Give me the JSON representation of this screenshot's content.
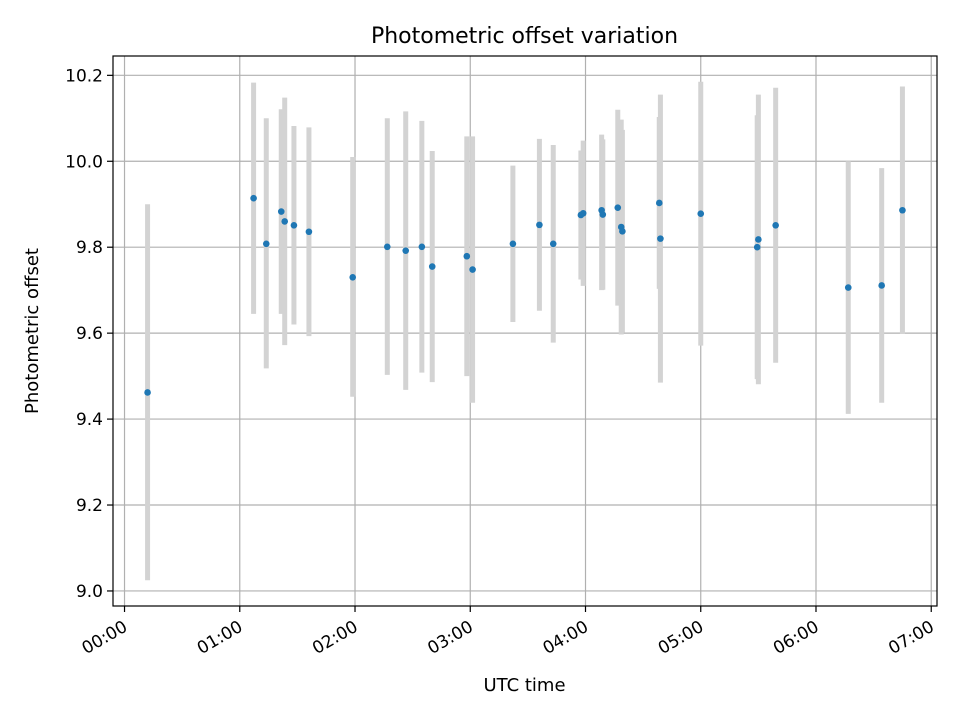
{
  "chart_data": {
    "type": "scatter",
    "title": "Photometric offset variation",
    "xlabel": "UTC time",
    "ylabel": "Photometric offset",
    "x_unit": "hours (UTC)",
    "xlim": [
      -0.1,
      7.05
    ],
    "ylim": [
      8.965,
      10.245
    ],
    "x_ticks": [
      {
        "value": 0,
        "label": "00:00"
      },
      {
        "value": 1,
        "label": "01:00"
      },
      {
        "value": 2,
        "label": "02:00"
      },
      {
        "value": 3,
        "label": "03:00"
      },
      {
        "value": 4,
        "label": "04:00"
      },
      {
        "value": 5,
        "label": "05:00"
      },
      {
        "value": 6,
        "label": "06:00"
      },
      {
        "value": 7,
        "label": "07:00"
      }
    ],
    "y_ticks": [
      {
        "value": 9.0,
        "label": "9.0"
      },
      {
        "value": 9.2,
        "label": "9.2"
      },
      {
        "value": 9.4,
        "label": "9.4"
      },
      {
        "value": 9.6,
        "label": "9.6"
      },
      {
        "value": 9.8,
        "label": "9.8"
      },
      {
        "value": 10.0,
        "label": "10.0"
      },
      {
        "value": 10.2,
        "label": "10.2"
      }
    ],
    "grid": true,
    "point_color": "#1f77b4",
    "errorbar_color": "#d3d3d3",
    "points": [
      {
        "x": 0.2,
        "y": 9.462,
        "low": 9.025,
        "high": 9.9
      },
      {
        "x": 1.12,
        "y": 9.914,
        "low": 9.645,
        "high": 10.183
      },
      {
        "x": 1.23,
        "y": 9.808,
        "low": 9.518,
        "high": 10.1
      },
      {
        "x": 1.36,
        "y": 9.883,
        "low": 9.645,
        "high": 10.121
      },
      {
        "x": 1.39,
        "y": 9.86,
        "low": 9.572,
        "high": 10.148
      },
      {
        "x": 1.47,
        "y": 9.851,
        "low": 9.62,
        "high": 10.082
      },
      {
        "x": 1.6,
        "y": 9.836,
        "low": 9.593,
        "high": 10.079
      },
      {
        "x": 1.98,
        "y": 9.73,
        "low": 9.452,
        "high": 10.01
      },
      {
        "x": 2.28,
        "y": 9.801,
        "low": 9.503,
        "high": 10.1
      },
      {
        "x": 2.44,
        "y": 9.792,
        "low": 9.468,
        "high": 10.116
      },
      {
        "x": 2.58,
        "y": 9.801,
        "low": 9.508,
        "high": 10.094
      },
      {
        "x": 2.67,
        "y": 9.755,
        "low": 9.486,
        "high": 10.024
      },
      {
        "x": 2.97,
        "y": 9.779,
        "low": 9.5,
        "high": 10.058
      },
      {
        "x": 3.02,
        "y": 9.748,
        "low": 9.438,
        "high": 10.058
      },
      {
        "x": 3.37,
        "y": 9.808,
        "low": 9.626,
        "high": 9.99
      },
      {
        "x": 3.6,
        "y": 9.852,
        "low": 9.652,
        "high": 10.052
      },
      {
        "x": 3.72,
        "y": 9.808,
        "low": 9.578,
        "high": 10.038
      },
      {
        "x": 3.96,
        "y": 9.875,
        "low": 9.725,
        "high": 10.025
      },
      {
        "x": 3.98,
        "y": 9.879,
        "low": 9.71,
        "high": 10.048
      },
      {
        "x": 4.14,
        "y": 9.886,
        "low": 9.7,
        "high": 10.062
      },
      {
        "x": 4.15,
        "y": 9.876,
        "low": 9.701,
        "high": 10.051
      },
      {
        "x": 4.28,
        "y": 9.892,
        "low": 9.664,
        "high": 10.12
      },
      {
        "x": 4.31,
        "y": 9.847,
        "low": 9.597,
        "high": 10.097
      },
      {
        "x": 4.32,
        "y": 9.837,
        "low": 9.601,
        "high": 10.073
      },
      {
        "x": 4.64,
        "y": 9.903,
        "low": 9.703,
        "high": 10.103
      },
      {
        "x": 4.65,
        "y": 9.82,
        "low": 9.485,
        "high": 10.155
      },
      {
        "x": 5.0,
        "y": 9.878,
        "low": 9.571,
        "high": 10.185
      },
      {
        "x": 5.49,
        "y": 9.8,
        "low": 9.493,
        "high": 10.107
      },
      {
        "x": 5.5,
        "y": 9.818,
        "low": 9.481,
        "high": 10.155
      },
      {
        "x": 5.65,
        "y": 9.851,
        "low": 9.531,
        "high": 10.171
      },
      {
        "x": 6.28,
        "y": 9.706,
        "low": 9.412,
        "high": 10.0
      },
      {
        "x": 6.57,
        "y": 9.711,
        "low": 9.438,
        "high": 9.984
      },
      {
        "x": 6.75,
        "y": 9.886,
        "low": 9.598,
        "high": 10.174
      }
    ]
  }
}
